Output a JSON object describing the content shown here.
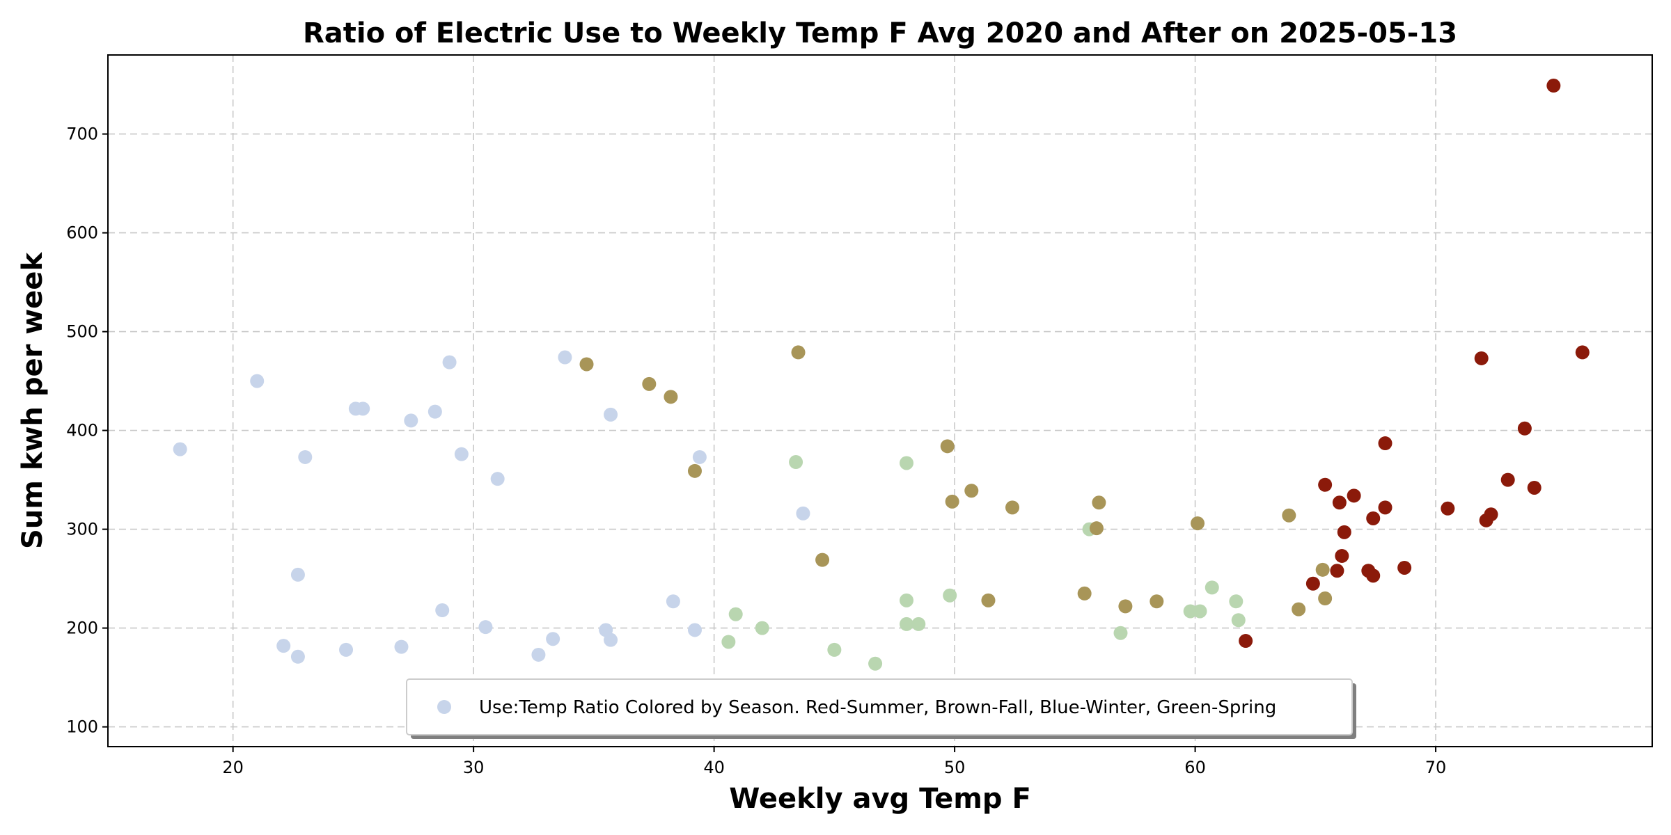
{
  "chart_data": {
    "type": "scatter",
    "title": "Ratio of Electric Use to Weekly Temp F Avg 2020 and After on 2025-05-13",
    "xlabel": "Weekly avg Temp F",
    "ylabel": "Sum kwh per week",
    "xlim": [
      14.8,
      79
    ],
    "ylim": [
      80,
      780
    ],
    "xticks": [
      20,
      30,
      40,
      50,
      60,
      70
    ],
    "yticks": [
      100,
      200,
      300,
      400,
      500,
      600,
      700
    ],
    "grid": true,
    "legend": {
      "placement": "bottom-center",
      "label": "Use:Temp Ratio Colored by Season. Red-Summer, Brown-Fall, Blue-Winter, Green-Spring",
      "marker_color": "#c7d4ea"
    },
    "colors": {
      "winter": "#c7d4ea",
      "spring": "#b9d6b0",
      "fall": "#a89558",
      "summer": "#8b1a0a"
    },
    "series": [
      {
        "season": "winter",
        "color": "#c7d4ea",
        "points": [
          [
            17.8,
            381
          ],
          [
            21.0,
            450
          ],
          [
            22.1,
            182
          ],
          [
            22.7,
            254
          ],
          [
            22.7,
            171
          ],
          [
            23.0,
            373
          ],
          [
            24.7,
            178
          ],
          [
            25.1,
            422
          ],
          [
            25.4,
            422
          ],
          [
            27.0,
            181
          ],
          [
            27.4,
            410
          ],
          [
            28.4,
            419
          ],
          [
            28.7,
            218
          ],
          [
            29.0,
            469
          ],
          [
            29.5,
            376
          ],
          [
            30.5,
            201
          ],
          [
            31.0,
            351
          ],
          [
            32.7,
            173
          ],
          [
            33.3,
            189
          ],
          [
            33.8,
            474
          ],
          [
            35.5,
            198
          ],
          [
            35.7,
            188
          ],
          [
            35.7,
            416
          ],
          [
            38.3,
            227
          ],
          [
            39.2,
            198
          ],
          [
            39.4,
            373
          ],
          [
            43.7,
            316
          ]
        ]
      },
      {
        "season": "spring",
        "color": "#b9d6b0",
        "points": [
          [
            40.6,
            186
          ],
          [
            40.9,
            214
          ],
          [
            42.0,
            200
          ],
          [
            43.4,
            368
          ],
          [
            45.0,
            178
          ],
          [
            46.7,
            164
          ],
          [
            48.0,
            367
          ],
          [
            48.0,
            228
          ],
          [
            48.0,
            204
          ],
          [
            48.5,
            204
          ],
          [
            49.8,
            233
          ],
          [
            55.6,
            300
          ],
          [
            56.9,
            195
          ],
          [
            59.8,
            217
          ],
          [
            60.2,
            217
          ],
          [
            60.7,
            241
          ],
          [
            61.7,
            227
          ],
          [
            61.8,
            208
          ]
        ]
      },
      {
        "season": "fall",
        "color": "#a89558",
        "points": [
          [
            34.7,
            467
          ],
          [
            37.3,
            447
          ],
          [
            38.2,
            434
          ],
          [
            39.2,
            359
          ],
          [
            43.5,
            479
          ],
          [
            44.5,
            269
          ],
          [
            49.7,
            384
          ],
          [
            49.9,
            328
          ],
          [
            50.7,
            339
          ],
          [
            51.4,
            228
          ],
          [
            52.4,
            322
          ],
          [
            55.4,
            235
          ],
          [
            55.9,
            301
          ],
          [
            56.0,
            327
          ],
          [
            57.1,
            222
          ],
          [
            58.4,
            227
          ],
          [
            60.1,
            306
          ],
          [
            63.9,
            314
          ],
          [
            64.3,
            219
          ],
          [
            65.3,
            259
          ],
          [
            65.4,
            230
          ]
        ]
      },
      {
        "season": "summer",
        "color": "#8b1a0a",
        "points": [
          [
            62.1,
            187
          ],
          [
            64.9,
            245
          ],
          [
            65.4,
            345
          ],
          [
            65.9,
            258
          ],
          [
            66.0,
            327
          ],
          [
            66.1,
            273
          ],
          [
            66.2,
            297
          ],
          [
            66.6,
            334
          ],
          [
            67.2,
            258
          ],
          [
            67.4,
            253
          ],
          [
            67.4,
            311
          ],
          [
            67.9,
            322
          ],
          [
            67.9,
            387
          ],
          [
            68.7,
            261
          ],
          [
            70.5,
            321
          ],
          [
            71.9,
            473
          ],
          [
            72.1,
            309
          ],
          [
            72.3,
            315
          ],
          [
            73.0,
            350
          ],
          [
            73.7,
            402
          ],
          [
            74.1,
            342
          ],
          [
            74.9,
            749
          ],
          [
            76.1,
            479
          ]
        ]
      }
    ]
  }
}
